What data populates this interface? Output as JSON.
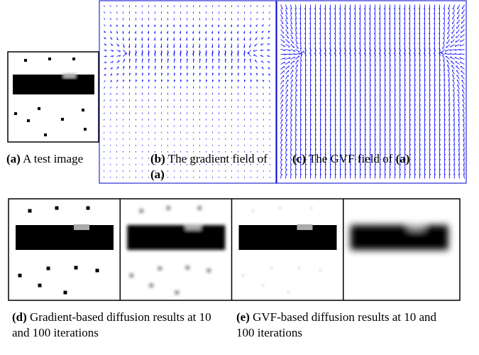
{
  "figure": {
    "panels": [
      {
        "label": "(a)",
        "text": "A test image"
      },
      {
        "label": "(b)",
        "text": "The gradient field of",
        "ref": "(a)"
      },
      {
        "label": "(c)",
        "text": "The GVF field of",
        "ref": "(a)"
      },
      {
        "label": "(d)",
        "text": "Gradient-based diffusion results at 10 and 100 iterations"
      },
      {
        "label": "(e)",
        "text": "GVF-based diffusion results at 10 and 100 iterations"
      }
    ]
  }
}
